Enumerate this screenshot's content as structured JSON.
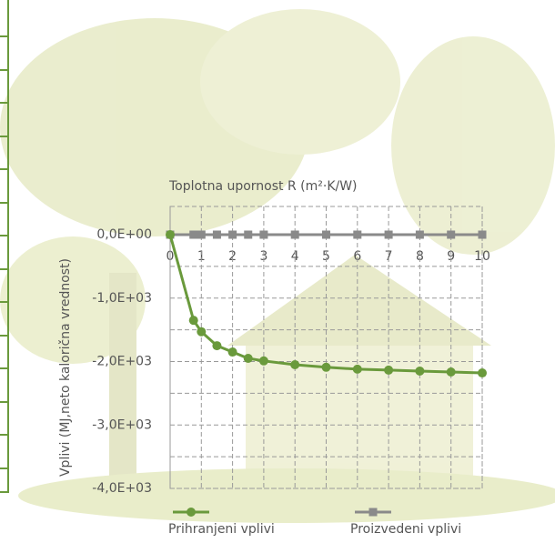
{
  "chart_data": {
    "type": "line",
    "x_label": "Toplotna upornost R (m²·K/W)",
    "y_label": "Vplivi (MJ,neto kalorična vrednost)",
    "xlim": [
      0,
      10
    ],
    "xticks": [
      0,
      1,
      2,
      3,
      4,
      5,
      6,
      7,
      8,
      9,
      10
    ],
    "ylim": [
      -4000,
      0
    ],
    "yticks": [
      {
        "value": 0,
        "label": "0,0E+00"
      },
      {
        "value": -1000,
        "label": "-1,0E+03"
      },
      {
        "value": -2000,
        "label": "-2,0E+03"
      },
      {
        "value": -3000,
        "label": "-3,0E+03"
      },
      {
        "value": -4000,
        "label": "-4,0E+03"
      }
    ],
    "grid": true,
    "legend": "bottom",
    "series": [
      {
        "name": "Prihranjeni vplivi",
        "color": "#6a9a3c",
        "marker": "circle",
        "x": [
          0,
          0.75,
          1,
          1.5,
          2,
          2.5,
          3,
          4,
          5,
          6,
          7,
          8,
          9,
          10
        ],
        "values": [
          0,
          -1350,
          -1530,
          -1750,
          -1850,
          -1950,
          -1990,
          -2050,
          -2090,
          -2120,
          -2135,
          -2150,
          -2165,
          -2180
        ]
      },
      {
        "name": "Proizvedeni vplivi",
        "color": "#8a8a8a",
        "marker": "square",
        "x": [
          0,
          0.75,
          1,
          1.5,
          2,
          2.5,
          3,
          4,
          5,
          6,
          7,
          8,
          9,
          10
        ],
        "values": [
          0,
          0,
          0,
          0,
          0,
          0,
          0,
          0,
          0,
          0,
          0,
          0,
          0,
          0
        ]
      }
    ]
  }
}
